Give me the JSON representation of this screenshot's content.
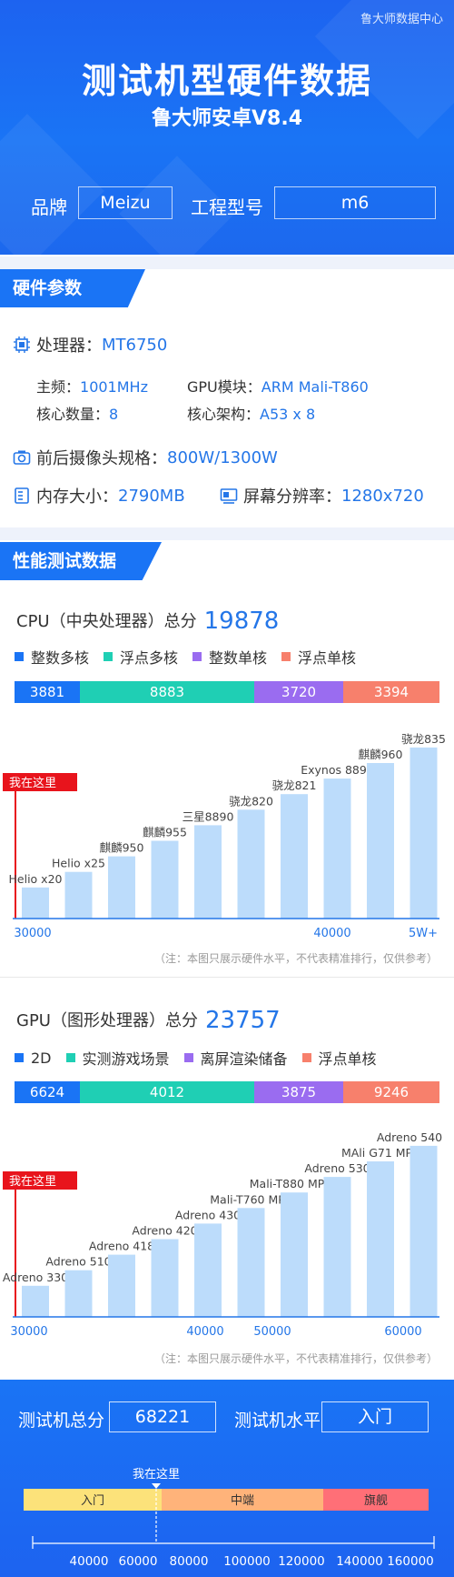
{
  "header": {
    "source": "鲁大师数据中心",
    "title": "测试机型硬件数据",
    "subtitle": "鲁大师安卓V8.4",
    "brand_label": "品牌",
    "brand_value": "Meizu",
    "model_label": "工程型号",
    "model_value": "m6"
  },
  "hardware": {
    "tab": "硬件参数",
    "cpu_label": "处理器：",
    "cpu_value": "MT6750",
    "freq_label": "主频：",
    "freq_value": "1001MHz",
    "gpu_label": "GPU模块：",
    "gpu_value": "ARM Mali-T860",
    "cores_label": "核心数量：",
    "cores_value": "8",
    "arch_label": "核心架构：",
    "arch_value": "A53 x 8",
    "camera_label": "前后摄像头规格：",
    "camera_value": "800W/1300W",
    "ram_label": "内存大小：",
    "ram_value": "2790MB",
    "screen_label": "屏幕分辨率：",
    "screen_value": "1280x720"
  },
  "perf": {
    "tab": "性能测试数据",
    "note": "（注：本图只展示硬件水平，不代表精准排行，仅供参考）",
    "here_label": "我在这里"
  },
  "cpu": {
    "title": "CPU（中央处理器）总分",
    "score": "19878",
    "legend": [
      "整数多核",
      "浮点多核",
      "整数单核",
      "浮点单核"
    ],
    "segments": [
      3881,
      8883,
      3720,
      3394
    ]
  },
  "gpu": {
    "title": "GPU（图形处理器）总分",
    "score": "23757",
    "legend": [
      "2D",
      "实测游戏场景",
      "离屏渲染储备",
      "浮点单核"
    ],
    "segments": [
      6624,
      4012,
      3875,
      9246
    ]
  },
  "colors": {
    "seg1": "#1a74f5",
    "seg2": "#1fcfb4",
    "seg3": "#9a6cf0",
    "seg4": "#f7806c",
    "bar": "#bcdcfb",
    "axis": "#2476e8",
    "marker": "#e8141c"
  },
  "chart_data": [
    {
      "type": "bar",
      "categories": [
        "Helio x20",
        "Helio x25",
        "麒麟950",
        "麒麟955",
        "三星8890",
        "骁龙820",
        "骁龙821",
        "Exynos 8895",
        "麒麟960",
        "骁龙835"
      ],
      "values": [
        0.18,
        0.27,
        0.36,
        0.45,
        0.54,
        0.63,
        0.72,
        0.81,
        0.9,
        0.99
      ],
      "xticks": [
        "30000",
        "40000",
        "5W+"
      ]
    },
    {
      "type": "bar",
      "categories": [
        "Adreno 330",
        "Adreno 510",
        "Adreno 418",
        "Adreno 420",
        "Adreno 430",
        "Mali-T760 MP8",
        "Mali-T880 MP12",
        "Adreno 530",
        "MAli  G71 MP8",
        "Adreno 540"
      ],
      "values": [
        0.18,
        0.27,
        0.36,
        0.45,
        0.54,
        0.63,
        0.72,
        0.81,
        0.9,
        0.99
      ],
      "xticks": [
        "30000",
        "40000",
        "50000",
        "60000"
      ]
    }
  ],
  "footer": {
    "total_label": "测试机总分",
    "total_value": "68221",
    "level_label": "测试机水平",
    "level_value": "入门",
    "here_label": "我在这里",
    "bands": [
      "入门",
      "中端",
      "旗舰"
    ],
    "ticks": [
      "40000",
      "60000",
      "80000",
      "100000",
      "120000",
      "140000",
      "160000"
    ]
  }
}
